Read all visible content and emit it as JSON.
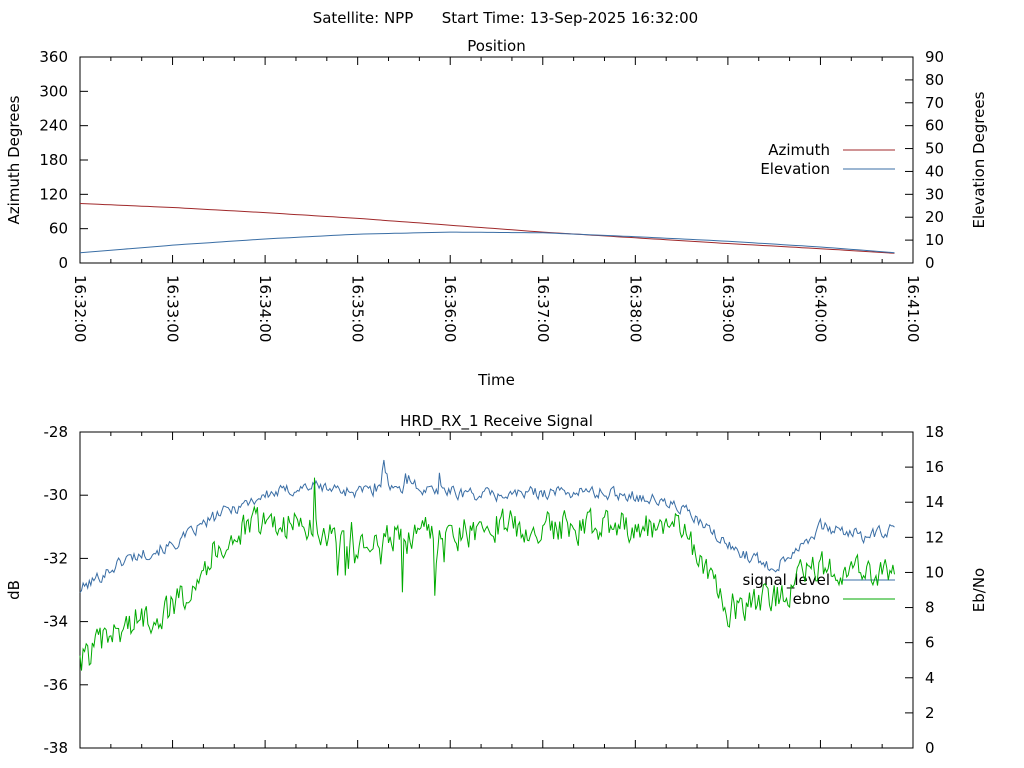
{
  "header": {
    "satellite": "Satellite: NPP",
    "start_time": "Start Time: 13-Sep-2025 16:32:00"
  },
  "chart_data": [
    {
      "type": "line",
      "title": "Position",
      "xlabel": "Time",
      "ylabel": "Azimuth Degrees",
      "y2label": "Elevation Degrees",
      "xlim": [
        "16:32:00",
        "16:41:00"
      ],
      "ylim": [
        0,
        360
      ],
      "y2lim": [
        0,
        90
      ],
      "xticks": [
        "16:32:00",
        "16:33:00",
        "16:34:00",
        "16:35:00",
        "16:36:00",
        "16:37:00",
        "16:38:00",
        "16:39:00",
        "16:40:00",
        "16:41:00"
      ],
      "yticks": [
        "0",
        "60",
        "120",
        "180",
        "240",
        "300",
        "360"
      ],
      "y2ticks": [
        "0",
        "10",
        "20",
        "30",
        "40",
        "50",
        "60",
        "70",
        "80",
        "90"
      ],
      "legend_position": "right",
      "series": [
        {
          "name": "Azimuth",
          "axis": "left",
          "color": "#a0292b",
          "x": [
            "16:32:00",
            "16:33:00",
            "16:34:00",
            "16:35:00",
            "16:36:00",
            "16:37:00",
            "16:38:00",
            "16:39:00",
            "16:40:00",
            "16:40:48"
          ],
          "values": [
            104,
            97,
            88,
            78,
            66,
            54,
            44,
            34,
            25,
            17
          ]
        },
        {
          "name": "Elevation",
          "axis": "right",
          "color": "#3a6ea5",
          "x": [
            "16:32:00",
            "16:33:00",
            "16:34:00",
            "16:35:00",
            "16:36:00",
            "16:37:00",
            "16:38:00",
            "16:39:00",
            "16:40:00",
            "16:40:48"
          ],
          "values": [
            4.5,
            7.8,
            10.5,
            12.6,
            13.5,
            13.2,
            11.5,
            9.5,
            7.0,
            4.5
          ]
        }
      ]
    },
    {
      "type": "line",
      "title": "HRD_RX_1 Receive Signal",
      "ylabel": "dB",
      "y2label": "Eb/No",
      "xlim": [
        "16:32:00",
        "16:41:00"
      ],
      "ylim": [
        -38,
        -28
      ],
      "y2lim": [
        0,
        18
      ],
      "yticks": [
        "-28",
        "-30",
        "-32",
        "-34",
        "-36",
        "-38"
      ],
      "y2ticks": [
        "0",
        "2",
        "4",
        "6",
        "8",
        "10",
        "12",
        "14",
        "16",
        "18"
      ],
      "legend_position": "right",
      "series": [
        {
          "name": "signal_level",
          "axis": "left",
          "color": "#3a6ea5",
          "x": [
            "16:32:00",
            "16:32:30",
            "16:33:00",
            "16:33:30",
            "16:34:00",
            "16:34:30",
            "16:35:00",
            "16:35:30",
            "16:36:00",
            "16:36:30",
            "16:37:00",
            "16:37:30",
            "16:38:00",
            "16:38:30",
            "16:39:00",
            "16:39:30",
            "16:40:00",
            "16:40:30",
            "16:40:48"
          ],
          "values": [
            -33.0,
            -32.0,
            -31.6,
            -30.6,
            -30.0,
            -29.7,
            -29.9,
            -29.7,
            -29.9,
            -30.0,
            -29.9,
            -29.9,
            -30.0,
            -30.4,
            -31.6,
            -32.3,
            -31.0,
            -31.3,
            -31.1
          ]
        },
        {
          "name": "ebno",
          "axis": "right",
          "color": "#00aa00",
          "x": [
            "16:32:00",
            "16:32:30",
            "16:33:00",
            "16:33:30",
            "16:34:00",
            "16:34:30",
            "16:35:00",
            "16:35:30",
            "16:36:00",
            "16:36:30",
            "16:37:00",
            "16:37:30",
            "16:38:00",
            "16:38:30",
            "16:39:00",
            "16:39:30",
            "16:40:00",
            "16:40:30",
            "16:40:48"
          ],
          "values": [
            5.0,
            7.0,
            8.0,
            11.5,
            13.0,
            12.5,
            11.0,
            12.5,
            12.0,
            12.8,
            12.5,
            12.6,
            12.8,
            12.5,
            8.0,
            8.5,
            10.5,
            10.0,
            10.5
          ]
        }
      ]
    }
  ]
}
